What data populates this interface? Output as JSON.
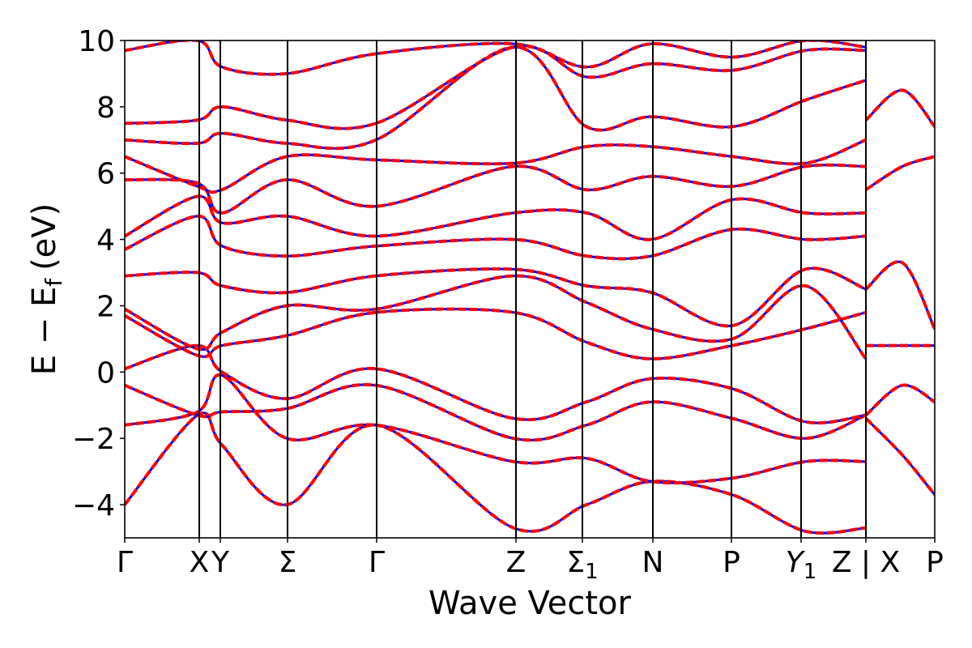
{
  "chart_data": {
    "type": "line",
    "title": "",
    "xlabel": "Wave Vector",
    "ylabel": "E − E_f (eV)",
    "ylabel_parts": {
      "main": "E − E",
      "sub": "f",
      "unit": "(eV)"
    },
    "xlim": [
      0,
      1
    ],
    "ylim": [
      -5,
      10
    ],
    "yticks": [
      -4,
      -2,
      0,
      2,
      4,
      6,
      8,
      10
    ],
    "ytick_labels": [
      "−4",
      "−2",
      "0",
      "2",
      "4",
      "6",
      "8",
      "10"
    ],
    "kpoints": [
      {
        "x": 0.0,
        "label": "Γ"
      },
      {
        "x": 0.092,
        "label": "X"
      },
      {
        "x": 0.118,
        "label": "Y"
      },
      {
        "x": 0.201,
        "label": "Σ"
      },
      {
        "x": 0.311,
        "label": "Γ"
      },
      {
        "x": 0.483,
        "label": "Z"
      },
      {
        "x": 0.565,
        "label": "Σ",
        "sub": "1"
      },
      {
        "x": 0.652,
        "label": "N"
      },
      {
        "x": 0.749,
        "label": "P"
      },
      {
        "x": 0.835,
        "label": "Y",
        "sub": "1",
        "italic": true
      },
      {
        "x": 0.915,
        "label": "Z | X"
      },
      {
        "x": 1.0,
        "label": "P"
      }
    ],
    "grid": false,
    "legend": "none",
    "colors": {
      "dft": "#0000ff",
      "wannier": "#ff0000"
    },
    "series": [
      {
        "x": [
          0,
          0.09,
          0.12,
          0.2,
          0.31,
          0.48,
          0.57,
          0.65,
          0.75,
          0.84,
          0.915
        ],
        "y": [
          -4.0,
          -1.3,
          -2.2,
          -4.0,
          -1.6,
          -4.7,
          -4.0,
          -3.3,
          -3.7,
          -4.8,
          -4.7
        ]
      },
      {
        "x": [
          0,
          0.09,
          0.12,
          0.2,
          0.31,
          0.48,
          0.57,
          0.65,
          0.75,
          0.84,
          0.915
        ],
        "y": [
          -1.6,
          -1.2,
          -0.1,
          -2.0,
          -1.6,
          -2.7,
          -2.6,
          -3.3,
          -3.2,
          -2.7,
          -2.7
        ]
      },
      {
        "x": [
          0,
          0.09,
          0.12,
          0.2,
          0.31,
          0.48,
          0.57,
          0.65,
          0.75,
          0.84,
          0.915
        ],
        "y": [
          -0.4,
          -1.3,
          -1.2,
          -1.1,
          -0.4,
          -2.0,
          -1.6,
          -0.9,
          -1.4,
          -2.0,
          -1.3
        ]
      },
      {
        "x": [
          0,
          0.09,
          0.12,
          0.2,
          0.31,
          0.48,
          0.57,
          0.65,
          0.75,
          0.84,
          0.915
        ],
        "y": [
          0.1,
          0.8,
          0.0,
          -0.8,
          0.1,
          -1.4,
          -0.9,
          -0.2,
          -0.5,
          -1.5,
          -1.3
        ]
      },
      {
        "x": [
          0,
          0.09,
          0.12,
          0.2,
          0.31,
          0.48,
          0.57,
          0.65,
          0.75,
          0.84,
          0.915
        ],
        "y": [
          1.7,
          0.5,
          0.8,
          1.1,
          1.8,
          1.8,
          0.9,
          0.4,
          0.8,
          1.3,
          1.8
        ]
      },
      {
        "x": [
          0,
          0.09,
          0.12,
          0.2,
          0.31,
          0.48,
          0.57,
          0.65,
          0.75,
          0.84,
          0.915
        ],
        "y": [
          1.9,
          0.7,
          1.2,
          2.0,
          1.9,
          2.9,
          2.1,
          1.3,
          1.0,
          2.6,
          0.4
        ]
      },
      {
        "x": [
          0,
          0.09,
          0.12,
          0.2,
          0.31,
          0.48,
          0.57,
          0.65,
          0.75,
          0.84,
          0.915
        ],
        "y": [
          2.9,
          3.0,
          2.6,
          2.4,
          2.9,
          3.1,
          2.6,
          2.4,
          1.4,
          3.1,
          2.5
        ]
      },
      {
        "x": [
          0,
          0.09,
          0.12,
          0.2,
          0.31,
          0.48,
          0.57,
          0.65,
          0.75,
          0.84,
          0.915
        ],
        "y": [
          3.7,
          4.7,
          3.8,
          3.5,
          3.8,
          4.0,
          3.5,
          3.5,
          4.3,
          4.0,
          4.1
        ]
      },
      {
        "x": [
          0,
          0.09,
          0.12,
          0.2,
          0.31,
          0.48,
          0.57,
          0.65,
          0.75,
          0.84,
          0.915
        ],
        "y": [
          4.1,
          5.3,
          4.5,
          4.7,
          4.1,
          4.8,
          4.8,
          4.0,
          5.2,
          4.8,
          4.8
        ]
      },
      {
        "x": [
          0,
          0.09,
          0.12,
          0.2,
          0.31,
          0.48,
          0.57,
          0.65,
          0.75,
          0.84,
          0.915
        ],
        "y": [
          5.8,
          5.7,
          4.8,
          5.8,
          5.0,
          6.2,
          5.5,
          5.9,
          5.6,
          6.2,
          6.2
        ]
      },
      {
        "x": [
          0,
          0.09,
          0.12,
          0.2,
          0.31,
          0.48,
          0.57,
          0.65,
          0.75,
          0.84,
          0.915
        ],
        "y": [
          6.5,
          5.6,
          5.5,
          6.5,
          6.4,
          6.3,
          6.8,
          6.8,
          6.5,
          6.3,
          7.0
        ]
      },
      {
        "x": [
          0,
          0.09,
          0.12,
          0.2,
          0.31,
          0.48,
          0.57,
          0.65,
          0.75,
          0.84,
          0.915
        ],
        "y": [
          7.0,
          6.9,
          7.2,
          6.9,
          7.0,
          9.8,
          7.4,
          7.7,
          7.4,
          8.2,
          8.8
        ]
      },
      {
        "x": [
          0,
          0.09,
          0.12,
          0.2,
          0.31,
          0.48,
          0.57,
          0.65,
          0.75,
          0.84,
          0.915
        ],
        "y": [
          7.5,
          7.6,
          8.0,
          7.6,
          7.5,
          9.8,
          8.9,
          9.3,
          9.1,
          9.7,
          9.7
        ]
      },
      {
        "x": [
          0,
          0.09,
          0.12,
          0.2,
          0.31,
          0.48,
          0.57,
          0.65,
          0.75,
          0.84,
          0.915
        ],
        "y": [
          9.7,
          10.0,
          9.2,
          9.0,
          9.6,
          9.9,
          9.2,
          9.9,
          9.5,
          10.0,
          9.8
        ]
      },
      {
        "x": [
          0.915,
          0.96,
          1.0
        ],
        "y": [
          -1.3,
          -0.4,
          -0.9
        ]
      },
      {
        "x": [
          0.915,
          0.96,
          1.0
        ],
        "y": [
          0.8,
          0.8,
          0.8
        ]
      },
      {
        "x": [
          0.915,
          0.96,
          1.0
        ],
        "y": [
          2.5,
          3.3,
          1.3
        ]
      },
      {
        "x": [
          0.915,
          0.96,
          1.0
        ],
        "y": [
          5.5,
          6.2,
          6.5
        ]
      },
      {
        "x": [
          0.915,
          0.96,
          1.0
        ],
        "y": [
          7.6,
          8.5,
          7.4
        ]
      },
      {
        "x": [
          0.915,
          0.96,
          1.0
        ],
        "y": [
          -1.4,
          -2.5,
          -3.7
        ]
      }
    ]
  }
}
